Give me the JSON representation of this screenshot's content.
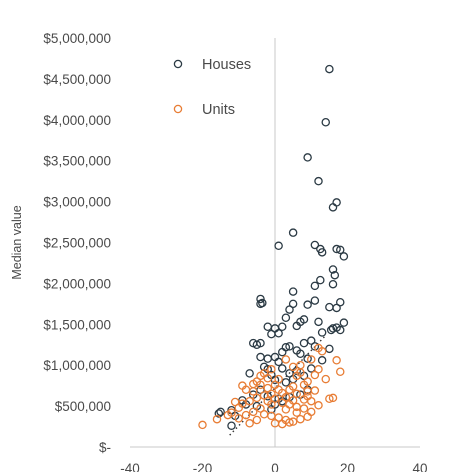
{
  "chart_data": {
    "type": "scatter",
    "title": "",
    "ylabel": "Median value",
    "xlabel": "",
    "ylim": [
      0,
      5000000
    ],
    "xlim": [
      -40,
      40
    ],
    "y_ticks": [
      {
        "value": 5000000,
        "label": "$5,000,000"
      },
      {
        "value": 4500000,
        "label": "$4,500,000"
      },
      {
        "value": 4000000,
        "label": "$4,000,000"
      },
      {
        "value": 3500000,
        "label": "$3,500,000"
      },
      {
        "value": 3000000,
        "label": "$3,000,000"
      },
      {
        "value": 2500000,
        "label": "$2,500,000"
      },
      {
        "value": 2000000,
        "label": "$2,000,000"
      },
      {
        "value": 1500000,
        "label": "$1,500,000"
      },
      {
        "value": 1000000,
        "label": "$1,000,000"
      },
      {
        "value": 500000,
        "label": "$500,000"
      },
      {
        "value": 0,
        "label": "$-"
      }
    ],
    "x_ticks": [
      {
        "value": -40,
        "label": "-40"
      },
      {
        "value": -20,
        "label": "-20"
      },
      {
        "value": 0,
        "label": "0"
      },
      {
        "value": 20,
        "label": "20"
      },
      {
        "value": 40,
        "label": "40"
      }
    ],
    "grid": false,
    "legend_position": "top-left",
    "series": [
      {
        "name": "Houses",
        "color": "#2b3a44",
        "marker": "hollow-circle",
        "points": [
          [
            15,
            4620000
          ],
          [
            14,
            3970000
          ],
          [
            9,
            3540000
          ],
          [
            12,
            3250000
          ],
          [
            17,
            2990000
          ],
          [
            16,
            2930000
          ],
          [
            5,
            2620000
          ],
          [
            1,
            2460000
          ],
          [
            11,
            2470000
          ],
          [
            12.5,
            2420000
          ],
          [
            13,
            2380000
          ],
          [
            18,
            2410000
          ],
          [
            19,
            2330000
          ],
          [
            17,
            2420000
          ],
          [
            16,
            2170000
          ],
          [
            16.5,
            2100000
          ],
          [
            12.5,
            2040000
          ],
          [
            16,
            1990000
          ],
          [
            5,
            1900000
          ],
          [
            11,
            1970000
          ],
          [
            11,
            1790000
          ],
          [
            9,
            1740000
          ],
          [
            -4,
            1810000
          ],
          [
            -4,
            1750000
          ],
          [
            -3.5,
            1760000
          ],
          [
            18,
            1770000
          ],
          [
            19,
            1520000
          ],
          [
            17,
            1700000
          ],
          [
            15,
            1710000
          ],
          [
            18,
            1430000
          ],
          [
            13,
            1400000
          ],
          [
            15.5,
            1430000
          ],
          [
            17,
            1460000
          ],
          [
            16,
            1450000
          ],
          [
            8,
            1560000
          ],
          [
            7,
            1530000
          ],
          [
            3,
            1580000
          ],
          [
            4,
            1680000
          ],
          [
            5,
            1750000
          ],
          [
            2,
            1470000
          ],
          [
            1,
            1390000
          ],
          [
            0,
            1450000
          ],
          [
            6,
            1480000
          ],
          [
            12,
            1530000
          ],
          [
            -2,
            1470000
          ],
          [
            -1,
            1380000
          ],
          [
            -4,
            1270000
          ],
          [
            -5,
            1250000
          ],
          [
            -6,
            1270000
          ],
          [
            15,
            1200000
          ],
          [
            8,
            1270000
          ],
          [
            10,
            1300000
          ],
          [
            11,
            1230000
          ],
          [
            3,
            1220000
          ],
          [
            2,
            1160000
          ],
          [
            6,
            1180000
          ],
          [
            4,
            1230000
          ],
          [
            7,
            1140000
          ],
          [
            9,
            1080000
          ],
          [
            13,
            1060000
          ],
          [
            -2,
            1080000
          ],
          [
            0,
            1100000
          ],
          [
            1,
            1040000
          ],
          [
            -4,
            1100000
          ],
          [
            -7,
            900000
          ],
          [
            -3,
            980000
          ],
          [
            -2,
            950000
          ],
          [
            2,
            960000
          ],
          [
            4,
            900000
          ],
          [
            6,
            930000
          ],
          [
            8,
            870000
          ],
          [
            10,
            960000
          ],
          [
            -1,
            880000
          ],
          [
            0,
            820000
          ],
          [
            3,
            790000
          ],
          [
            5,
            830000
          ],
          [
            -4,
            700000
          ],
          [
            -6,
            640000
          ],
          [
            -2,
            620000
          ],
          [
            1,
            590000
          ],
          [
            -8,
            520000
          ],
          [
            -12,
            450000
          ],
          [
            -15,
            430000
          ],
          [
            -15.5,
            410000
          ],
          [
            -11,
            380000
          ],
          [
            -12,
            260000
          ],
          [
            0,
            520000
          ],
          [
            2,
            560000
          ],
          [
            4,
            610000
          ],
          [
            7,
            640000
          ],
          [
            9,
            700000
          ],
          [
            -9,
            570000
          ],
          [
            -5,
            500000
          ],
          [
            -1,
            460000
          ]
        ]
      },
      {
        "name": "Units",
        "color": "#e87d35",
        "marker": "hollow-circle",
        "points": [
          [
            12,
            1210000
          ],
          [
            13,
            1170000
          ],
          [
            10,
            1070000
          ],
          [
            17,
            1060000
          ],
          [
            18,
            920000
          ],
          [
            12,
            950000
          ],
          [
            11,
            880000
          ],
          [
            14,
            830000
          ],
          [
            9,
            800000
          ],
          [
            8,
            760000
          ],
          [
            6,
            870000
          ],
          [
            5,
            980000
          ],
          [
            7,
            1000000
          ],
          [
            3,
            1070000
          ],
          [
            -1,
            950000
          ],
          [
            -3,
            900000
          ],
          [
            -4,
            870000
          ],
          [
            -5,
            800000
          ],
          [
            -6,
            770000
          ],
          [
            -9,
            750000
          ],
          [
            -8,
            700000
          ],
          [
            -2,
            720000
          ],
          [
            0,
            760000
          ],
          [
            1,
            700000
          ],
          [
            2,
            660000
          ],
          [
            4,
            700000
          ],
          [
            6,
            650000
          ],
          [
            9,
            620000
          ],
          [
            10,
            560000
          ],
          [
            12,
            510000
          ],
          [
            15,
            590000
          ],
          [
            16,
            600000
          ],
          [
            -1,
            650000
          ],
          [
            -3,
            630000
          ],
          [
            -5,
            600000
          ],
          [
            -7,
            560000
          ],
          [
            -9,
            530000
          ],
          [
            -10,
            480000
          ],
          [
            -12,
            420000
          ],
          [
            -13,
            390000
          ],
          [
            -16,
            340000
          ],
          [
            -20,
            270000
          ],
          [
            -2,
            560000
          ],
          [
            0,
            590000
          ],
          [
            2,
            540000
          ],
          [
            4,
            520000
          ],
          [
            6,
            490000
          ],
          [
            8,
            470000
          ],
          [
            10,
            430000
          ],
          [
            -4,
            470000
          ],
          [
            -6,
            430000
          ],
          [
            -8,
            390000
          ],
          [
            -10,
            350000
          ],
          [
            -3,
            400000
          ],
          [
            -1,
            380000
          ],
          [
            1,
            360000
          ],
          [
            3,
            330000
          ],
          [
            5,
            310000
          ],
          [
            7,
            340000
          ],
          [
            9,
            370000
          ],
          [
            -5,
            330000
          ],
          [
            -7,
            290000
          ],
          [
            0,
            290000
          ],
          [
            2,
            280000
          ],
          [
            4,
            300000
          ],
          [
            6,
            420000
          ],
          [
            8,
            580000
          ],
          [
            11,
            690000
          ],
          [
            3,
            610000
          ],
          [
            5,
            740000
          ],
          [
            -2,
            840000
          ],
          [
            -4,
            760000
          ],
          [
            1,
            830000
          ],
          [
            7,
            910000
          ],
          [
            9,
            680000
          ],
          [
            -11,
            550000
          ],
          [
            -6,
            680000
          ],
          [
            -1,
            520000
          ],
          [
            3,
            460000
          ],
          [
            5,
            570000
          ]
        ]
      }
    ],
    "trendline": {
      "style": "dotted",
      "color": "#333333",
      "slope": 46000,
      "intercept": 720000
    }
  }
}
